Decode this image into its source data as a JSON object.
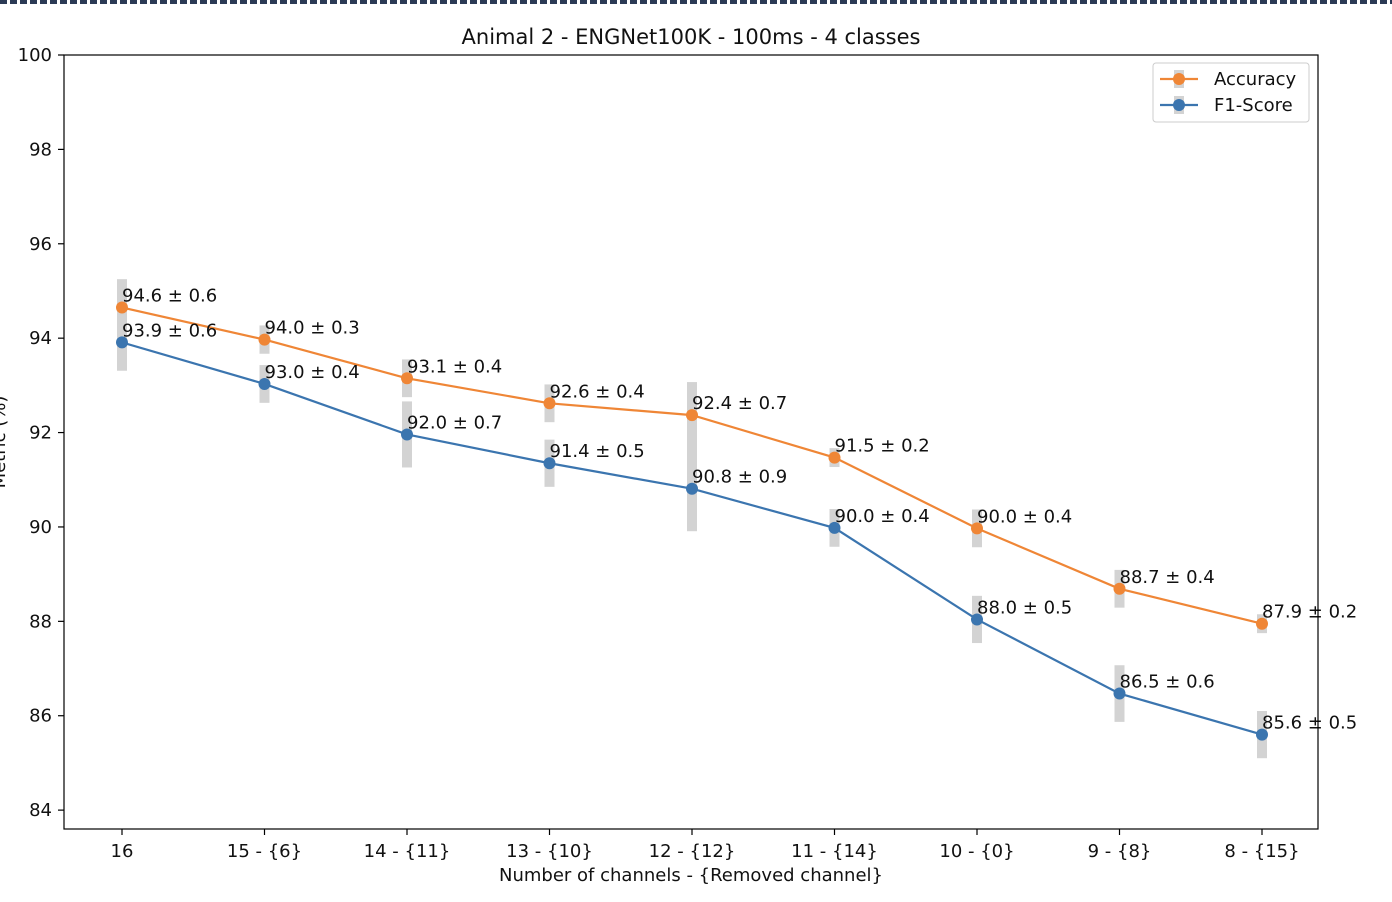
{
  "chart_data": {
    "type": "line",
    "title": "Animal 2 - ENGNet100K - 100ms - 4 classes",
    "xlabel": "Number of channels - {Removed channel}",
    "ylabel": "Metric (%)",
    "categories": [
      "16",
      "15 - {6}",
      "14 - {11}",
      "13 - {10}",
      "12 - {12}",
      "11 - {14}",
      "10 - {0}",
      "9 - {8}",
      "8 - {15}"
    ],
    "ylim": [
      83.6,
      100
    ],
    "yticks": [
      84,
      86,
      88,
      90,
      92,
      94,
      96,
      98,
      100
    ],
    "legend_position": "top-right",
    "grid": false,
    "series": [
      {
        "name": "Accuracy",
        "color": "#ef8636",
        "values": [
          94.65,
          93.97,
          93.15,
          92.62,
          92.37,
          91.47,
          89.97,
          88.69,
          87.95
        ],
        "errors": [
          0.6,
          0.3,
          0.4,
          0.4,
          0.7,
          0.2,
          0.4,
          0.4,
          0.2
        ],
        "labels": [
          "94.6 ± 0.6",
          "94.0 ± 0.3",
          "93.1 ± 0.4",
          "92.6 ± 0.4",
          "92.4 ± 0.7",
          "91.5 ± 0.2",
          "90.0 ± 0.4",
          "88.7 ± 0.4",
          "87.9 ± 0.2"
        ]
      },
      {
        "name": "F1-Score",
        "color": "#3b75af",
        "values": [
          93.91,
          93.03,
          91.96,
          91.35,
          90.81,
          89.98,
          88.04,
          86.47,
          85.6
        ],
        "errors": [
          0.6,
          0.4,
          0.7,
          0.5,
          0.9,
          0.4,
          0.5,
          0.6,
          0.5
        ],
        "labels": [
          "93.9 ± 0.6",
          "93.0 ± 0.4",
          "92.0 ± 0.7",
          "91.4 ± 0.5",
          "90.8 ± 0.9",
          "90.0 ± 0.4",
          "88.0 ± 0.5",
          "86.5 ± 0.6",
          "85.6 ± 0.5"
        ]
      }
    ]
  }
}
